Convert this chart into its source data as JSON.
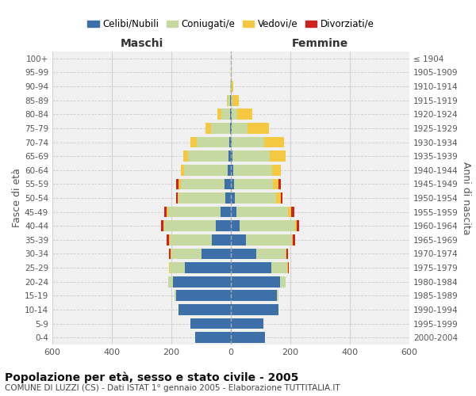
{
  "age_groups": [
    "0-4",
    "5-9",
    "10-14",
    "15-19",
    "20-24",
    "25-29",
    "30-34",
    "35-39",
    "40-44",
    "45-49",
    "50-54",
    "55-59",
    "60-64",
    "65-69",
    "70-74",
    "75-79",
    "80-84",
    "85-89",
    "90-94",
    "95-99",
    "100+"
  ],
  "birth_years": [
    "2000-2004",
    "1995-1999",
    "1990-1994",
    "1985-1989",
    "1980-1984",
    "1975-1979",
    "1970-1974",
    "1965-1969",
    "1960-1964",
    "1955-1959",
    "1950-1954",
    "1945-1949",
    "1940-1944",
    "1935-1939",
    "1930-1934",
    "1925-1929",
    "1920-1924",
    "1915-1919",
    "1910-1914",
    "1905-1909",
    "≤ 1904"
  ],
  "males": {
    "celibi": [
      120,
      135,
      175,
      185,
      195,
      155,
      100,
      65,
      50,
      35,
      20,
      22,
      12,
      8,
      5,
      3,
      3,
      2,
      0,
      0,
      0
    ],
    "coniugati": [
      0,
      0,
      1,
      5,
      15,
      50,
      100,
      140,
      175,
      175,
      155,
      145,
      145,
      135,
      110,
      65,
      30,
      8,
      3,
      1,
      0
    ],
    "vedovi": [
      0,
      0,
      0,
      0,
      0,
      2,
      2,
      2,
      3,
      5,
      5,
      8,
      10,
      18,
      22,
      18,
      12,
      3,
      1,
      0,
      0
    ],
    "divorziati": [
      0,
      0,
      0,
      0,
      0,
      2,
      5,
      10,
      8,
      8,
      5,
      8,
      0,
      0,
      0,
      0,
      0,
      0,
      0,
      0,
      0
    ]
  },
  "females": {
    "nubili": [
      115,
      110,
      160,
      155,
      165,
      135,
      85,
      50,
      30,
      18,
      12,
      10,
      8,
      5,
      3,
      2,
      2,
      1,
      0,
      0,
      0
    ],
    "coniugate": [
      0,
      0,
      1,
      5,
      18,
      55,
      100,
      155,
      185,
      175,
      140,
      130,
      130,
      125,
      110,
      55,
      20,
      5,
      2,
      1,
      0
    ],
    "vedove": [
      0,
      0,
      0,
      0,
      0,
      2,
      2,
      2,
      5,
      10,
      15,
      20,
      30,
      55,
      65,
      70,
      50,
      20,
      5,
      1,
      0
    ],
    "divorziate": [
      0,
      0,
      0,
      0,
      0,
      3,
      5,
      10,
      10,
      10,
      5,
      8,
      0,
      0,
      0,
      0,
      0,
      0,
      0,
      0,
      0
    ]
  },
  "colors": {
    "celibi_nubili": "#3d6fa8",
    "coniugati": "#c5d9a0",
    "vedovi": "#f5c842",
    "divorziati": "#cc2222"
  },
  "xlim": 600,
  "title": "Popolazione per età, sesso e stato civile - 2005",
  "subtitle": "COMUNE DI LUZZI (CS) - Dati ISTAT 1° gennaio 2005 - Elaborazione TUTTITALIA.IT",
  "ylabel_left": "Fasce di età",
  "ylabel_right": "Anni di nascita",
  "xlabel_left": "Maschi",
  "xlabel_right": "Femmine",
  "bg_color": "#f0f0f0",
  "grid_color": "#cccccc"
}
